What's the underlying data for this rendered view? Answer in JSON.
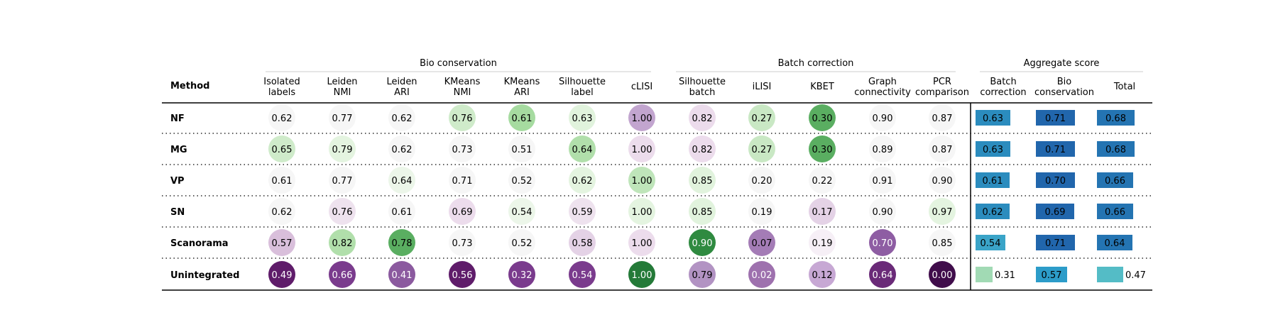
{
  "chart_data": {
    "type": "table",
    "method_header": "Method",
    "groups": [
      {
        "label": "Bio conservation",
        "columns": [
          {
            "label": [
              "Isolated",
              "labels"
            ]
          },
          {
            "label": [
              "Leiden",
              "NMI"
            ]
          },
          {
            "label": [
              "Leiden",
              "ARI"
            ]
          },
          {
            "label": [
              "KMeans",
              "NMI"
            ]
          },
          {
            "label": [
              "KMeans",
              "ARI"
            ]
          },
          {
            "label": [
              "Silhouette",
              "label"
            ]
          },
          {
            "label": [
              "cLISI"
            ]
          }
        ]
      },
      {
        "label": "Batch correction",
        "columns": [
          {
            "label": [
              "Silhouette",
              "batch"
            ]
          },
          {
            "label": [
              "iLISI"
            ]
          },
          {
            "label": [
              "KBET"
            ]
          },
          {
            "label": [
              "Graph",
              "connectivity"
            ]
          },
          {
            "label": [
              "PCR",
              "comparison"
            ]
          }
        ]
      },
      {
        "label": "Aggregate score",
        "columns": [
          {
            "label": [
              "Batch",
              "correction"
            ]
          },
          {
            "label": [
              "Bio",
              "conservation"
            ]
          },
          {
            "label": [
              "Total"
            ]
          }
        ]
      }
    ],
    "rows": [
      {
        "method": "NF",
        "circles": [
          "0.62",
          "0.77",
          "0.62",
          "0.76",
          "0.61",
          "0.63",
          "1.00",
          "0.82",
          "0.27",
          "0.30",
          "0.90",
          "0.87"
        ],
        "colors": [
          "#f6f6f6",
          "#f6f6f6",
          "#f6f6f6",
          "#cfebca",
          "#a6dba0",
          "#e1f3dd",
          "#c2a5cf",
          "#ecdcec",
          "#c9e8c4",
          "#5aae61",
          "#f6f6f6",
          "#f6f6f6"
        ],
        "bars": [
          "0.63",
          "0.71",
          "0.68"
        ]
      },
      {
        "method": "MG",
        "circles": [
          "0.65",
          "0.79",
          "0.62",
          "0.73",
          "0.51",
          "0.64",
          "1.00",
          "0.82",
          "0.27",
          "0.30",
          "0.89",
          "0.87"
        ],
        "colors": [
          "#cfebca",
          "#e4f4e0",
          "#f6f6f6",
          "#f6f6f6",
          "#f6f6f6",
          "#b1dfab",
          "#ecdcec",
          "#ecdcec",
          "#c9e8c4",
          "#5aae61",
          "#f6f6f6",
          "#f6f6f6"
        ],
        "bars": [
          "0.63",
          "0.71",
          "0.68"
        ]
      },
      {
        "method": "VP",
        "circles": [
          "0.61",
          "0.77",
          "0.64",
          "0.71",
          "0.52",
          "0.62",
          "1.00",
          "0.85",
          "0.20",
          "0.22",
          "0.91",
          "0.90"
        ],
        "colors": [
          "#f6f6f6",
          "#f6f6f6",
          "#ecf6e9",
          "#f6f6f6",
          "#f6f6f6",
          "#e4f4e0",
          "#bfe5ba",
          "#e1f3dd",
          "#f6f6f6",
          "#f6f6f6",
          "#f6f6f6",
          "#f6f6f6"
        ],
        "bars": [
          "0.61",
          "0.70",
          "0.66"
        ]
      },
      {
        "method": "SN",
        "circles": [
          "0.62",
          "0.76",
          "0.61",
          "0.69",
          "0.54",
          "0.59",
          "1.00",
          "0.85",
          "0.19",
          "0.17",
          "0.90",
          "0.97"
        ],
        "colors": [
          "#f6f6f6",
          "#eee2ee",
          "#f6f6f6",
          "#ecdcec",
          "#ecf6e9",
          "#eee2ee",
          "#e4f4e0",
          "#e1f3dd",
          "#f6f6f6",
          "#e4d2e6",
          "#f6f6f6",
          "#e4f4e0"
        ],
        "bars": [
          "0.62",
          "0.69",
          "0.66"
        ]
      },
      {
        "method": "Scanorama",
        "circles": [
          "0.57",
          "0.82",
          "0.78",
          "0.73",
          "0.52",
          "0.58",
          "1.00",
          "0.90",
          "0.07",
          "0.19",
          "0.70",
          "0.85"
        ],
        "colors": [
          "#d9bfdb",
          "#b1dfab",
          "#5aae61",
          "#f6f6f6",
          "#f6f6f6",
          "#e4d2e6",
          "#ecdcec",
          "#2f8a40",
          "#a47cb6",
          "#f6eff6",
          "#8e5da3",
          "#f6f6f6"
        ],
        "bars": [
          "0.54",
          "0.71",
          "0.64"
        ]
      },
      {
        "method": "Unintegrated",
        "circles": [
          "0.49",
          "0.66",
          "0.41",
          "0.56",
          "0.32",
          "0.54",
          "1.00",
          "0.79",
          "0.02",
          "0.12",
          "0.64",
          "0.00"
        ],
        "colors": [
          "#5f1c6a",
          "#7a3b8d",
          "#8b5a9f",
          "#5f1c6a",
          "#7a3b8d",
          "#7a3b8d",
          "#247a38",
          "#b293c3",
          "#9e71ae",
          "#c7a8d4",
          "#6a2a78",
          "#400d4b"
        ],
        "bars": [
          "0.31",
          "0.57",
          "0.47"
        ]
      }
    ],
    "bar_colors": [
      [
        "#2b8cbe",
        "#2166ac",
        "#2474b2"
      ],
      [
        "#2b8cbe",
        "#2166ac",
        "#2474b2"
      ],
      [
        "#2b8cbe",
        "#2166ac",
        "#2474b2"
      ],
      [
        "#2b8cbe",
        "#2166ac",
        "#2474b2"
      ],
      [
        "#3aa4c8",
        "#2166ac",
        "#2474b2"
      ],
      [
        "#a1dab4",
        "#2c9cc9",
        "#54bcc6"
      ]
    ]
  }
}
